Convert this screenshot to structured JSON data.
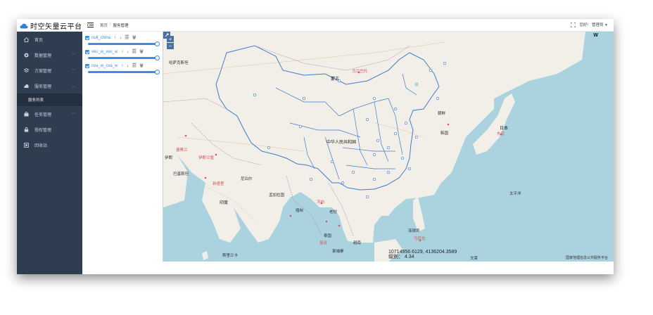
{
  "app": {
    "title": "时空矢量云平台",
    "breadcrumb": {
      "home": "首页",
      "separator": "/",
      "current": "服务管理"
    },
    "header": {
      "greeting": "您好!",
      "user": "管理员"
    }
  },
  "sidebar": {
    "items": [
      {
        "label": "首页",
        "icon": "home-icon",
        "expandable": false
      },
      {
        "label": "数据管理",
        "icon": "data-icon",
        "expandable": true
      },
      {
        "label": "方案管理",
        "icon": "scheme-icon",
        "expandable": true
      },
      {
        "label": "服务管理",
        "icon": "service-icon",
        "expandable": true,
        "active": true
      },
      {
        "label": "任务管理",
        "icon": "task-icon",
        "expandable": true
      },
      {
        "label": "授权管理",
        "icon": "lock-icon",
        "expandable": false
      },
      {
        "label": "回收站",
        "icon": "trash-icon",
        "expandable": false
      }
    ],
    "active_sub": "服务列表"
  },
  "layers": [
    {
      "name": "null_china",
      "ops": "↑ ↓ 🗐 🗑",
      "checked": true,
      "opacity": 1.0
    },
    {
      "name": "vec_w_vec_w",
      "ops": "↑ ↓ 🗐 🗑",
      "checked": true,
      "opacity": 1.0
    },
    {
      "name": "cva_w_cva_w",
      "ops": "↑ ↓ 🗐 🗑",
      "checked": true,
      "opacity": 1.0
    }
  ],
  "map": {
    "zoom_in": "+",
    "zoom_out": "−",
    "toolbar_w": "W",
    "coordinates": "10714956.6129, 4136204.3589",
    "zoom_level_label": "级别：",
    "zoom_level": "4.34",
    "attribution": "国家地理信息公共服务平台",
    "labels": {
      "china": "中华人民共和国",
      "mongolia": "蒙古",
      "ulaanbaatar": "乌兰巴托",
      "korea_n": "朝鲜",
      "korea_s": "韩国",
      "japan": "日本",
      "tokyo": "东京",
      "kazakhstan": "哈萨克斯坦",
      "tehran": "德黑兰",
      "iran": "伊朗",
      "pakistan": "巴基斯坦",
      "india": "印度",
      "nepal": "尼泊尔",
      "bangladesh": "孟加拉国",
      "myanmar": "缅甸",
      "laos": "老挝",
      "vietnam": "越南",
      "thailand": "泰国",
      "cambodia": "柬埔寨",
      "philippines": "菲律宾",
      "manila": "马尼拉",
      "srilanka": "斯里兰卡",
      "pacific": "太平洋",
      "newdelhi": "新德里",
      "hanoi": "河内",
      "bangkok": "曼谷",
      "afghanistan": "阿富汗",
      "islamabad": "伊斯兰堡",
      "kathmandu": "加德满都",
      "borneo": "文莱"
    }
  },
  "colors": {
    "sidebar_bg": "#2f3d51",
    "accent": "#3a8ee6",
    "land": "#f2efe9",
    "water": "#aad3df",
    "boundary": "#3d7cc9"
  }
}
